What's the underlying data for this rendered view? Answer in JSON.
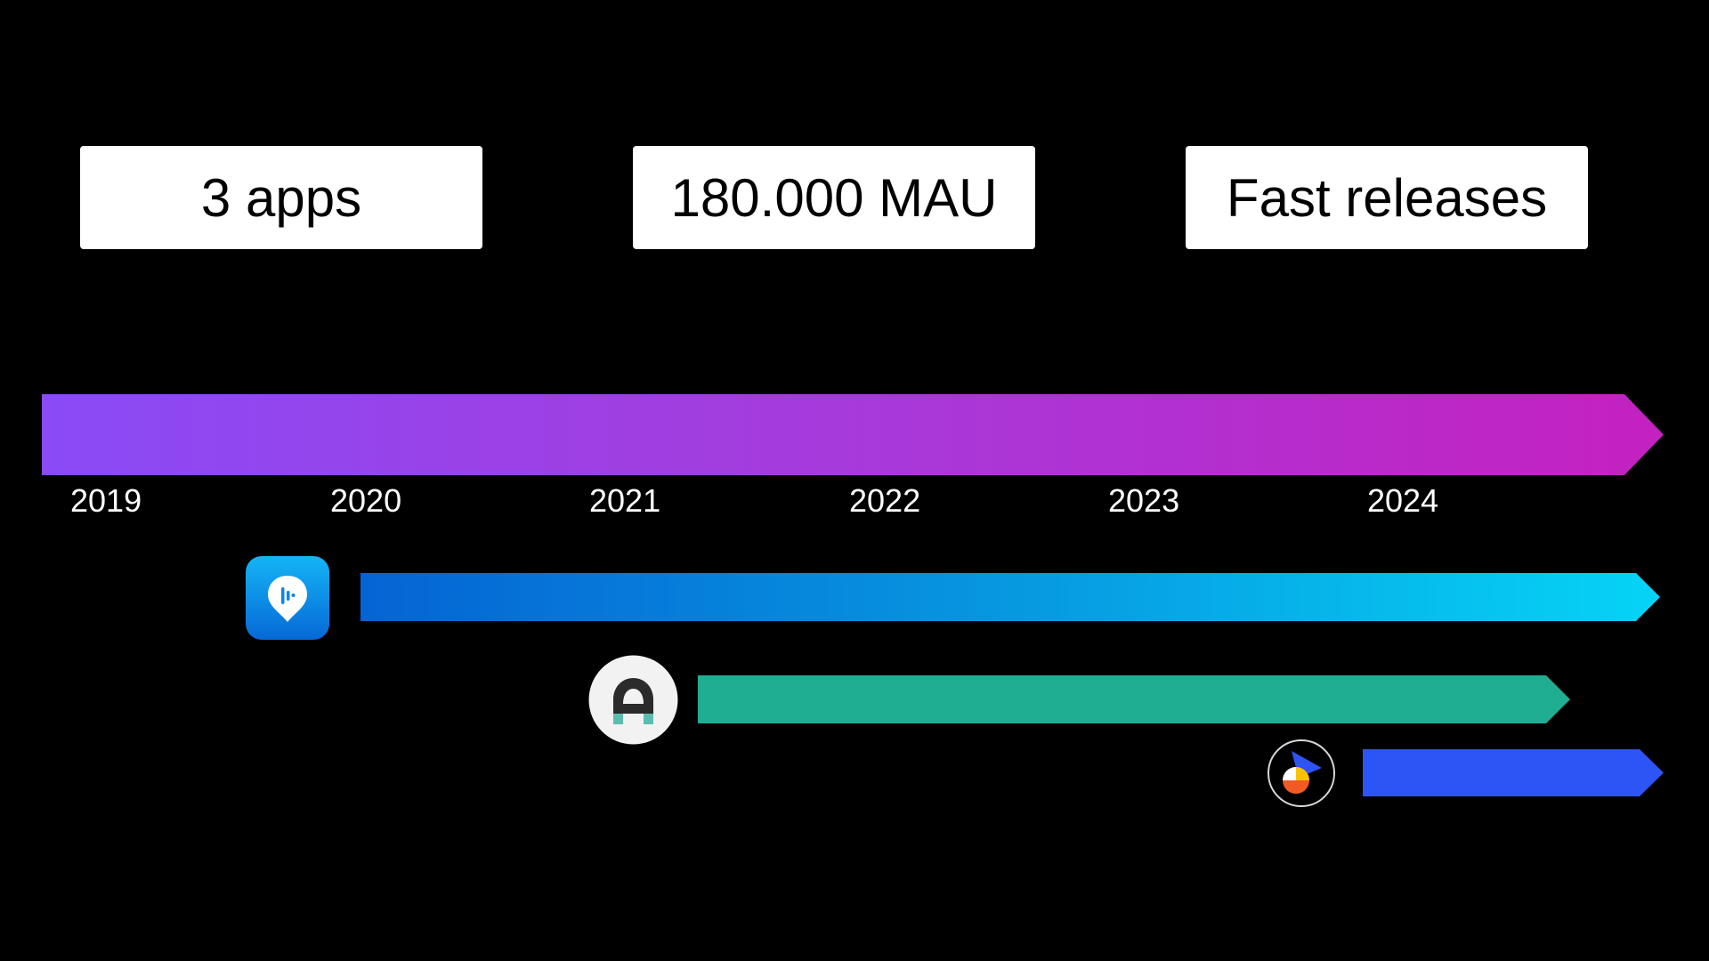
{
  "stats": [
    {
      "label": "3 apps"
    },
    {
      "label": "180.000 MAU"
    },
    {
      "label": "Fast releases"
    }
  ],
  "timeline": {
    "years": [
      "2019",
      "2020",
      "2021",
      "2022",
      "2023",
      "2024"
    ],
    "colors": {
      "main_start": "#8a4bf6",
      "main_end": "#c421c0"
    }
  },
  "apps": [
    {
      "icon": "podcast-location-pin-icon",
      "color_start": "#0564d4",
      "color_end": "#05d4f6"
    },
    {
      "icon": "letter-a-logo-icon",
      "color": "#20ae93"
    },
    {
      "icon": "play-pie-logo-icon",
      "color": "#2d54f5"
    }
  ]
}
